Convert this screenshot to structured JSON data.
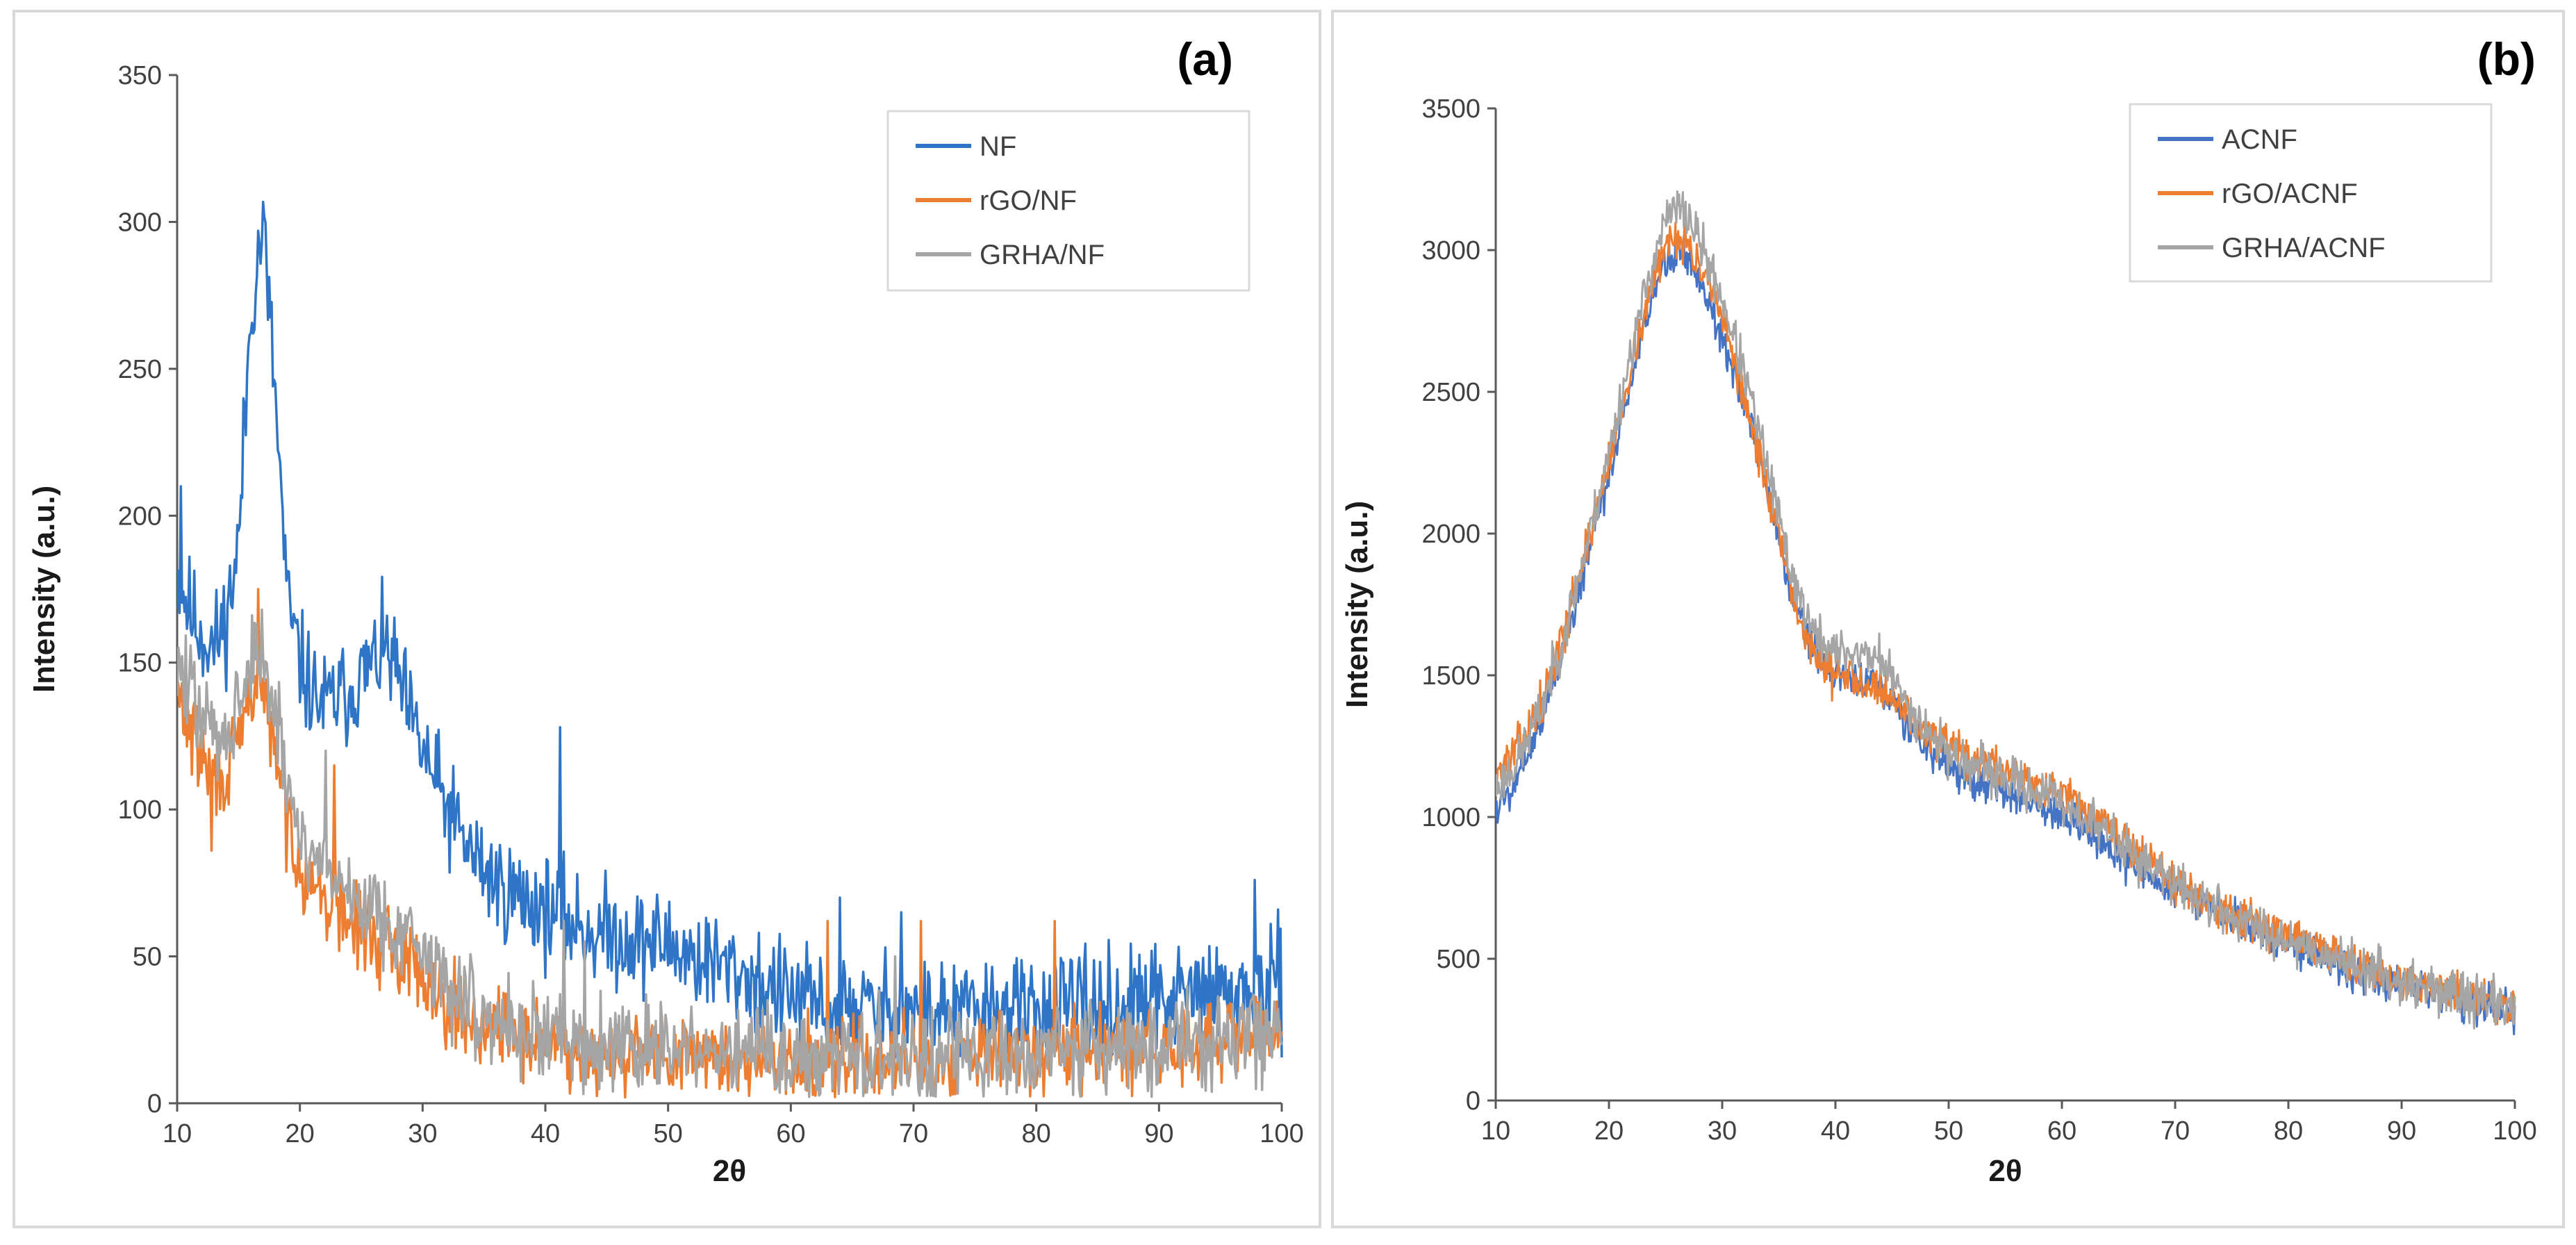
{
  "chart_data": [
    {
      "type": "line",
      "panel_label": "(a)",
      "xlabel": "2θ",
      "ylabel": "Intensity (a.u.)",
      "xlim": [
        10,
        100
      ],
      "ylim": [
        0,
        350
      ],
      "xticks": [
        "10",
        "20",
        "30",
        "40",
        "50",
        "60",
        "70",
        "80",
        "90",
        "100"
      ],
      "yticks": [
        "0",
        "50",
        "100",
        "150",
        "200",
        "250",
        "300",
        "350"
      ],
      "grid": false,
      "legend_position": "top-right",
      "series": [
        {
          "name": "NF",
          "color": "#2E75C8",
          "x": [
            10,
            11,
            12,
            13,
            14,
            15,
            16,
            17,
            18,
            19,
            20,
            21,
            22,
            23,
            24,
            25,
            26,
            27,
            28,
            29,
            30,
            31,
            32,
            33,
            34,
            35,
            36,
            37,
            38,
            39,
            40,
            41,
            42,
            43,
            44,
            45,
            46,
            47,
            48,
            49,
            50,
            52,
            54,
            56,
            58,
            60,
            62,
            64,
            66,
            68,
            70,
            72,
            74,
            76,
            78,
            80,
            82,
            84,
            86,
            88,
            90,
            92,
            94,
            96,
            98,
            100
          ],
          "y": [
            180,
            168,
            160,
            155,
            165,
            190,
            270,
            300,
            240,
            170,
            150,
            140,
            135,
            138,
            140,
            145,
            150,
            155,
            145,
            130,
            120,
            110,
            100,
            92,
            85,
            80,
            75,
            72,
            70,
            68,
            66,
            64,
            62,
            60,
            58,
            58,
            57,
            56,
            55,
            55,
            54,
            50,
            47,
            44,
            40,
            36,
            34,
            33,
            32,
            32,
            31,
            31,
            31,
            31,
            32,
            32,
            32,
            33,
            33,
            34,
            35,
            36,
            37,
            37,
            38,
            40
          ],
          "spikes": [
            [
              10.3,
              210
            ],
            [
              41.2,
              128
            ],
            [
              64,
              70
            ],
            [
              69,
              65
            ],
            [
              97.8,
              76
            ]
          ],
          "noise": 9,
          "seed": 11
        },
        {
          "name": "rGO/NF",
          "color": "#ED7D31",
          "x": [
            10,
            11,
            12,
            13,
            14,
            15,
            16,
            17,
            18,
            19,
            20,
            22,
            24,
            26,
            28,
            30,
            32,
            34,
            36,
            38,
            40,
            42,
            44,
            46,
            48,
            50,
            55,
            60,
            65,
            70,
            75,
            80,
            85,
            90,
            95,
            100
          ],
          "y": [
            140,
            128,
            118,
            110,
            112,
            122,
            140,
            142,
            118,
            95,
            82,
            70,
            62,
            56,
            52,
            45,
            35,
            28,
            25,
            23,
            21,
            19,
            18,
            17,
            16,
            15,
            14,
            14,
            14,
            15,
            15,
            16,
            17,
            18,
            20,
            24
          ],
          "spikes": [
            [
              12.8,
              86
            ],
            [
              16.6,
              175
            ],
            [
              22.8,
              115
            ],
            [
              63,
              62
            ],
            [
              70.6,
              62
            ],
            [
              81.5,
              62
            ]
          ],
          "noise": 7,
          "seed": 29
        },
        {
          "name": "GRHA/NF",
          "color": "#A5A5A5",
          "x": [
            10,
            11,
            12,
            13,
            14,
            15,
            16,
            17,
            18,
            19,
            20,
            22,
            24,
            26,
            28,
            30,
            32,
            34,
            36,
            38,
            40,
            42,
            44,
            46,
            48,
            50,
            55,
            60,
            65,
            70,
            75,
            80,
            85,
            90,
            95,
            100
          ],
          "y": [
            150,
            140,
            132,
            125,
            128,
            136,
            150,
            152,
            130,
            108,
            92,
            80,
            72,
            66,
            60,
            52,
            40,
            32,
            28,
            26,
            24,
            22,
            21,
            20,
            19,
            18,
            17,
            16,
            16,
            16,
            17,
            17,
            18,
            19,
            22,
            28
          ],
          "spikes": [
            [
              16.9,
              168
            ],
            [
              22.1,
              120
            ],
            [
              41.5,
              62
            ],
            [
              43.2,
              55
            ],
            [
              68.5,
              50
            ]
          ],
          "noise": 8,
          "seed": 47
        }
      ]
    },
    {
      "type": "line",
      "panel_label": "(b)",
      "xlabel": "2θ",
      "ylabel": "Intensity (a.u.)",
      "xlim": [
        10,
        100
      ],
      "ylim": [
        0,
        3500
      ],
      "xticks": [
        "10",
        "20",
        "30",
        "40",
        "50",
        "60",
        "70",
        "80",
        "90",
        "100"
      ],
      "yticks": [
        "0",
        "500",
        "1000",
        "1500",
        "2000",
        "2500",
        "3000",
        "3500"
      ],
      "grid": false,
      "legend_position": "top-right",
      "series": [
        {
          "name": "ACNF",
          "color": "#4472C4",
          "x": [
            10,
            12,
            14,
            16,
            18,
            20,
            22,
            24,
            25,
            26,
            27,
            28,
            30,
            32,
            34,
            36,
            38,
            40,
            42,
            44,
            46,
            48,
            50,
            52,
            54,
            56,
            58,
            60,
            62,
            64,
            66,
            68,
            70,
            75,
            80,
            85,
            90,
            95,
            100
          ],
          "y": [
            1020,
            1150,
            1350,
            1600,
            1900,
            2200,
            2550,
            2850,
            2960,
            3000,
            2970,
            2900,
            2700,
            2450,
            2150,
            1800,
            1600,
            1500,
            1480,
            1460,
            1350,
            1250,
            1170,
            1130,
            1100,
            1070,
            1040,
            1000,
            950,
            900,
            850,
            790,
            740,
            640,
            560,
            480,
            410,
            360,
            320
          ],
          "noise": 35,
          "seed": 5
        },
        {
          "name": "rGO/ACNF",
          "color": "#ED7D31",
          "x": [
            10,
            12,
            14,
            16,
            18,
            20,
            22,
            24,
            25,
            26,
            27,
            28,
            30,
            32,
            34,
            36,
            38,
            40,
            42,
            44,
            46,
            48,
            50,
            52,
            54,
            56,
            58,
            60,
            62,
            64,
            66,
            68,
            70,
            75,
            80,
            85,
            90,
            95,
            100
          ],
          "y": [
            1150,
            1250,
            1400,
            1650,
            1950,
            2250,
            2600,
            2900,
            3020,
            3060,
            3020,
            2940,
            2750,
            2480,
            2150,
            1800,
            1580,
            1500,
            1490,
            1460,
            1380,
            1300,
            1240,
            1200,
            1180,
            1150,
            1120,
            1080,
            1020,
            960,
            900,
            830,
            770,
            660,
            580,
            500,
            430,
            380,
            340
          ],
          "noise": 35,
          "seed": 13
        },
        {
          "name": "GRHA/ACNF",
          "color": "#A5A5A5",
          "x": [
            10,
            12,
            14,
            16,
            18,
            20,
            22,
            24,
            25,
            26,
            27,
            28,
            30,
            32,
            34,
            36,
            38,
            40,
            42,
            44,
            46,
            48,
            50,
            52,
            54,
            56,
            58,
            60,
            62,
            64,
            66,
            68,
            70,
            75,
            80,
            85,
            90,
            95,
            100
          ],
          "y": [
            1100,
            1200,
            1380,
            1640,
            1950,
            2280,
            2650,
            2980,
            3100,
            3150,
            3120,
            3030,
            2830,
            2560,
            2230,
            1880,
            1650,
            1580,
            1580,
            1560,
            1420,
            1310,
            1230,
            1180,
            1150,
            1120,
            1090,
            1050,
            1000,
            940,
            880,
            820,
            760,
            650,
            570,
            490,
            420,
            370,
            330
          ],
          "noise": 40,
          "seed": 23
        }
      ]
    }
  ]
}
